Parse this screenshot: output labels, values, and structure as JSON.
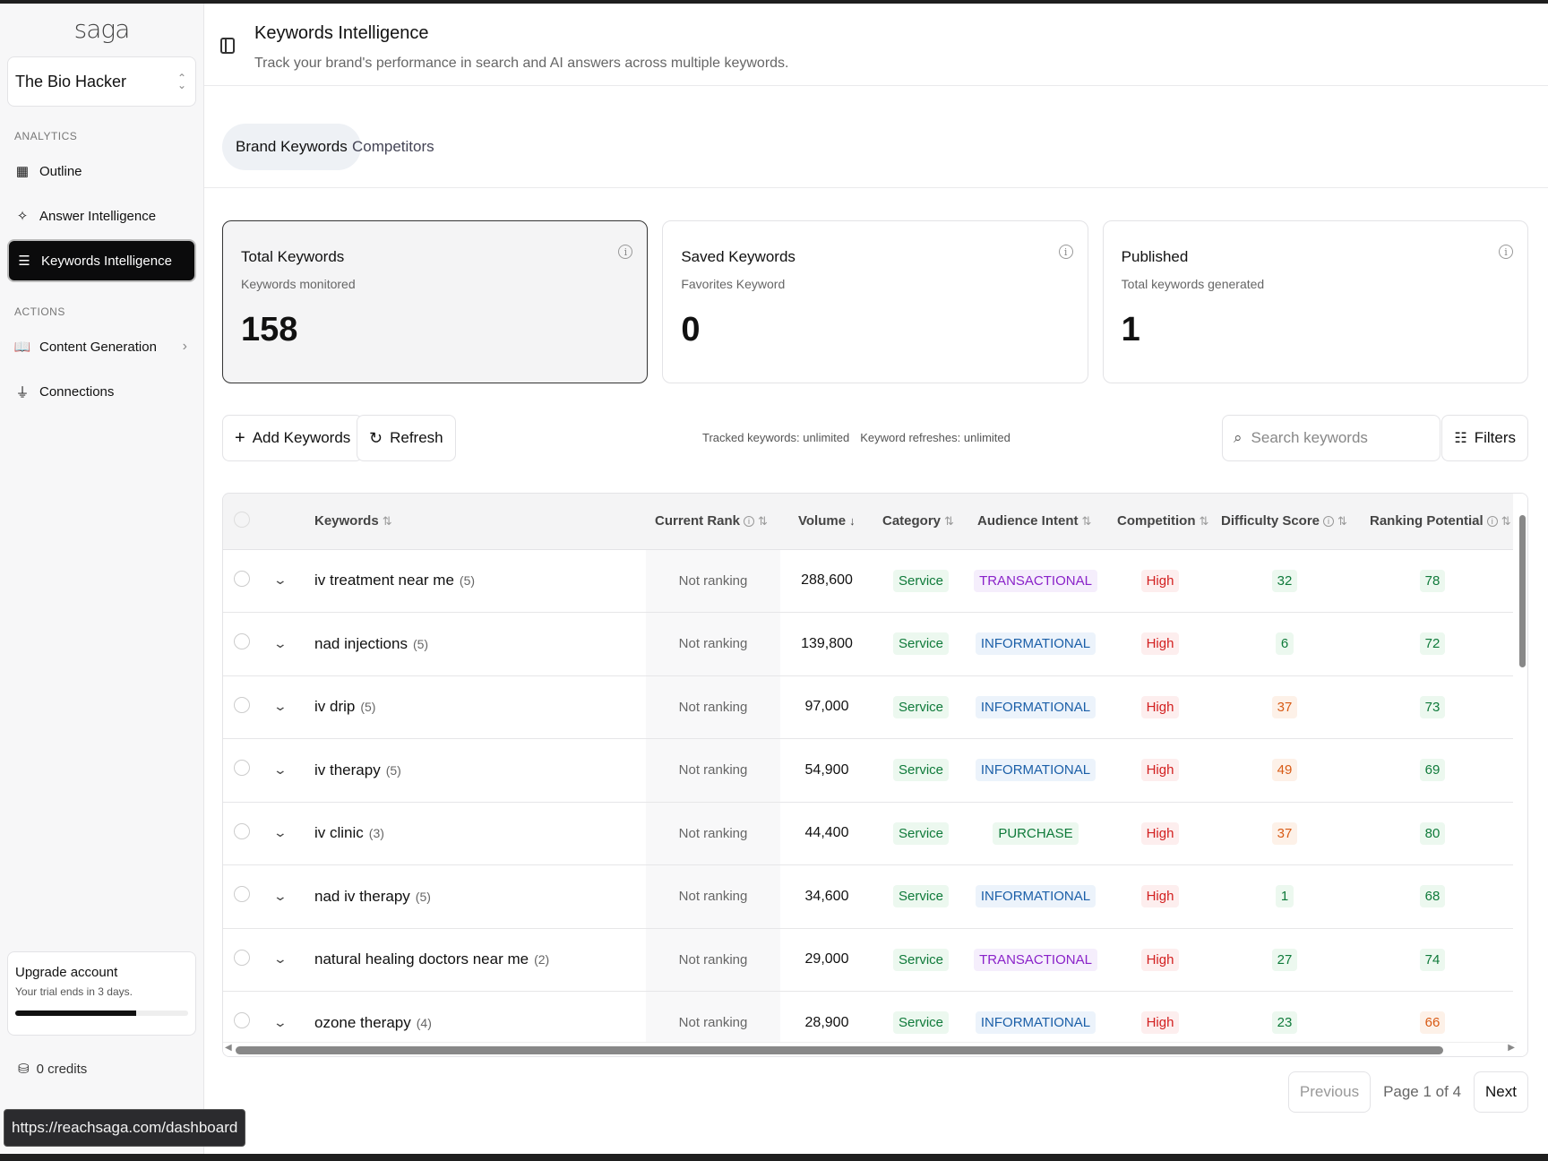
{
  "app": {
    "logo": "saga",
    "org": "The Bio Hacker"
  },
  "sidebar": {
    "analytics_label": "ANALYTICS",
    "actions_label": "ACTIONS",
    "analytics_items": [
      {
        "label": "Outline",
        "icon": "layout-icon"
      },
      {
        "label": "Answer Intelligence",
        "icon": "sparkle-icon"
      },
      {
        "label": "Keywords Intelligence",
        "icon": "list-icon",
        "active": true
      }
    ],
    "actions_items": [
      {
        "label": "Content Generation",
        "icon": "book-icon",
        "has_submenu": true
      },
      {
        "label": "Connections",
        "icon": "plug-icon"
      }
    ],
    "upgrade": {
      "title": "Upgrade account",
      "subtitle": "Your trial ends in 3 days.",
      "progress": 0.7
    },
    "credits": "0 credits"
  },
  "status_url": "https://reachsaga.com/dashboard",
  "header": {
    "title": "Keywords Intelligence",
    "subtitle": "Track your brand's performance in search and AI answers across multiple keywords."
  },
  "tabs": [
    {
      "label": "Brand Keywords",
      "active": true
    },
    {
      "label": "Competitors",
      "active": false
    }
  ],
  "cards": [
    {
      "title": "Total Keywords",
      "subtitle": "Keywords monitored",
      "value": "158",
      "selected": true
    },
    {
      "title": "Saved Keywords",
      "subtitle": "Favorites Keyword",
      "value": "0"
    },
    {
      "title": "Published",
      "subtitle": "Total keywords generated",
      "value": "1"
    }
  ],
  "toolbar": {
    "add_label": "Add Keywords",
    "refresh_label": "Refresh",
    "tracked": "Tracked keywords: unlimited",
    "refreshes": "Keyword refreshes: unlimited",
    "search_placeholder": "Search keywords",
    "filters_label": "Filters"
  },
  "table": {
    "columns": [
      "Keywords",
      "Current Rank",
      "Volume",
      "Category",
      "Audience Intent",
      "Competition",
      "Difficulty Score",
      "Ranking Potential"
    ],
    "rows": [
      {
        "keyword": "iv treatment near me",
        "count": "(5)",
        "rank": "Not ranking",
        "volume": "288,600",
        "category": "Service",
        "intent": "TRANSACTIONAL",
        "competition": "High",
        "difficulty": "32",
        "difficulty_tone": "green",
        "potential": "78",
        "potential_tone": "green"
      },
      {
        "keyword": "nad injections",
        "count": "(5)",
        "rank": "Not ranking",
        "volume": "139,800",
        "category": "Service",
        "intent": "INFORMATIONAL",
        "competition": "High",
        "difficulty": "6",
        "difficulty_tone": "green",
        "potential": "72",
        "potential_tone": "green"
      },
      {
        "keyword": "iv drip",
        "count": "(5)",
        "rank": "Not ranking",
        "volume": "97,000",
        "category": "Service",
        "intent": "INFORMATIONAL",
        "competition": "High",
        "difficulty": "37",
        "difficulty_tone": "orange",
        "potential": "73",
        "potential_tone": "green"
      },
      {
        "keyword": "iv therapy",
        "count": "(5)",
        "rank": "Not ranking",
        "volume": "54,900",
        "category": "Service",
        "intent": "INFORMATIONAL",
        "competition": "High",
        "difficulty": "49",
        "difficulty_tone": "orange",
        "potential": "69",
        "potential_tone": "green"
      },
      {
        "keyword": "iv clinic",
        "count": "(3)",
        "rank": "Not ranking",
        "volume": "44,400",
        "category": "Service",
        "intent": "PURCHASE",
        "competition": "High",
        "difficulty": "37",
        "difficulty_tone": "orange",
        "potential": "80",
        "potential_tone": "green"
      },
      {
        "keyword": "nad iv therapy",
        "count": "(5)",
        "rank": "Not ranking",
        "volume": "34,600",
        "category": "Service",
        "intent": "INFORMATIONAL",
        "competition": "High",
        "difficulty": "1",
        "difficulty_tone": "green",
        "potential": "68",
        "potential_tone": "green"
      },
      {
        "keyword": "natural healing doctors near me",
        "count": "(2)",
        "rank": "Not ranking",
        "volume": "29,000",
        "category": "Service",
        "intent": "TRANSACTIONAL",
        "competition": "High",
        "difficulty": "27",
        "difficulty_tone": "green",
        "potential": "74",
        "potential_tone": "green"
      },
      {
        "keyword": "ozone therapy",
        "count": "(4)",
        "rank": "Not ranking",
        "volume": "28,900",
        "category": "Service",
        "intent": "INFORMATIONAL",
        "competition": "High",
        "difficulty": "23",
        "difficulty_tone": "green",
        "potential": "66",
        "potential_tone": "orange"
      }
    ]
  },
  "pager": {
    "previous": "Previous",
    "page_info": "Page 1 of 4",
    "next": "Next"
  }
}
